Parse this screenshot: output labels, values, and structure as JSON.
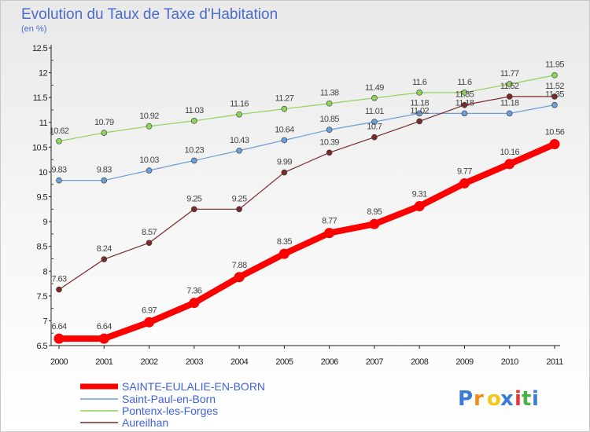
{
  "chart_data": {
    "type": "line",
    "title": "Evolution du Taux de Taxe d'Habitation",
    "subtitle": "(en %)",
    "x": [
      2000,
      2001,
      2002,
      2003,
      2004,
      2005,
      2006,
      2007,
      2008,
      2009,
      2010,
      2011
    ],
    "x_tick_labels": [
      "2000",
      "2001",
      "2002",
      "2003",
      "2004",
      "2005",
      "2006",
      "2007",
      "2008",
      "2009",
      "2010",
      "2011"
    ],
    "ylim": [
      6.5,
      12.5
    ],
    "y_ticks": [
      6.5,
      7,
      7.5,
      8,
      8.5,
      9,
      9.5,
      10,
      10.5,
      11,
      11.5,
      12,
      12.5
    ],
    "y_tick_labels": [
      "6.5",
      "7",
      "7.5",
      "8",
      "8.5",
      "9",
      "9.5",
      "10",
      "10.5",
      "11",
      "11.5",
      "12",
      "12.5"
    ],
    "grid": false,
    "legend_position": "bottom-left",
    "series": [
      {
        "name": "SAINTE-EULALIE-EN-BORN",
        "color": "#ff0000",
        "values": [
          6.64,
          6.64,
          6.97,
          7.36,
          7.88,
          8.35,
          8.77,
          8.95,
          9.31,
          9.77,
          10.16,
          10.56
        ],
        "labels": [
          "6.64",
          "6.64",
          "6.97",
          "7.36",
          "7.88",
          "8.35",
          "8.77",
          "8.95",
          "9.31",
          "9.77",
          "10.16",
          "10.56"
        ]
      },
      {
        "name": "Saint-Paul-en-Born",
        "color": "#6a9fd8",
        "values": [
          9.83,
          9.83,
          10.03,
          10.23,
          10.43,
          10.64,
          10.85,
          11.01,
          11.18,
          11.18,
          11.18,
          11.35
        ],
        "labels": [
          "9.83",
          "9.83",
          "10.03",
          "10.23",
          "10.43",
          "10.64",
          "10.85",
          "11.01",
          "11.18",
          "11.18",
          "11.18",
          "11.35"
        ]
      },
      {
        "name": "Pontenx-les-Forges",
        "color": "#8fd35a",
        "values": [
          10.62,
          10.79,
          10.92,
          11.03,
          11.16,
          11.27,
          11.38,
          11.49,
          11.6,
          11.6,
          11.77,
          11.95
        ],
        "labels": [
          "10.62",
          "10.79",
          "10.92",
          "11.03",
          "11.16",
          "11.27",
          "11.38",
          "11.49",
          "11.6",
          "11.6",
          "11.77",
          "11.95"
        ]
      },
      {
        "name": "Aureilhan",
        "color": "#7a2a2a",
        "values": [
          7.63,
          8.24,
          8.57,
          9.25,
          9.25,
          9.99,
          10.39,
          10.7,
          11.02,
          11.35,
          11.52,
          11.52
        ],
        "labels": [
          "7.63",
          "8.24",
          "8.57",
          "9.25",
          "9.25",
          "9.99",
          "10.39",
          "10.7",
          "11.02",
          "11.35",
          "11.52",
          "11.52"
        ]
      }
    ]
  },
  "logo": {
    "letters": [
      "P",
      "r",
      "o",
      "x",
      "i",
      "t",
      "i"
    ],
    "colors": [
      "#3a7bd5",
      "#f08a1c",
      "#f5c518",
      "#3a7bd5",
      "#e23a3a",
      "#4cb04a",
      "#3a7bd5"
    ]
  }
}
